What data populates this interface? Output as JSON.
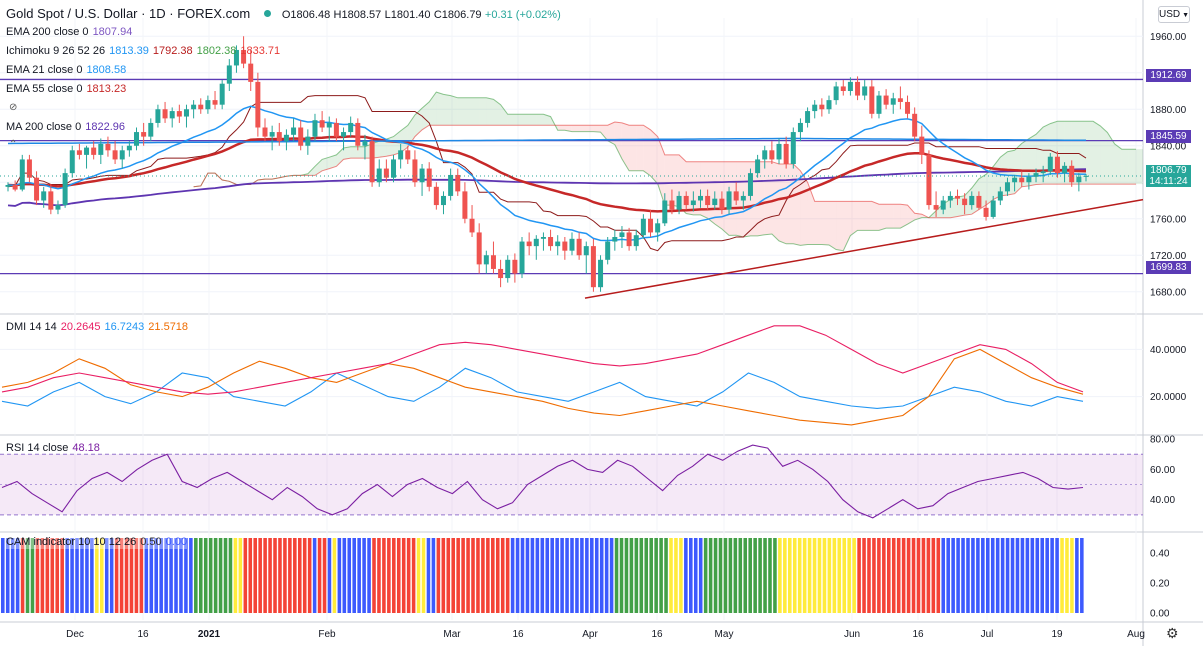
{
  "header": {
    "title": "Gold Spot / U.S. Dollar · 1D · FOREX.com",
    "open": "O1806.48",
    "high": "H1808.57",
    "low": "L1801.40",
    "close": "C1806.79",
    "change": "+0.31 (+0.02%)",
    "currency": "USD"
  },
  "legends": {
    "ema200": {
      "label": "EMA 200 close 0",
      "value": "1807.94"
    },
    "ichimoku": {
      "label": "Ichimoku 9 26 52 26",
      "v1": "1813.39",
      "v2": "1792.38",
      "v3": "1802.38",
      "v4": "1833.71"
    },
    "ema21": {
      "label": "EMA 21 close 0",
      "value": "1808.58"
    },
    "ema55": {
      "label": "EMA 55 close 0",
      "value": "1813.23"
    },
    "ma200": {
      "label": "MA 200 close 0",
      "value": "1822.96"
    },
    "dmi": {
      "label": "DMI 14 14",
      "v1": "20.2645",
      "v2": "16.7243",
      "v3": "21.5718"
    },
    "rsi": {
      "label": "RSI 14 close",
      "value": "48.18"
    },
    "cam": {
      "label": "CAM indicator 10 10 12 26",
      "v1": "0.50",
      "v2": "0.00"
    }
  },
  "price_labels": {
    "r1": "1912.69",
    "r2": "1845.59",
    "s1": "1699.83",
    "last_price": "1806.79",
    "last_time": "14:11:24"
  },
  "colors": {
    "up": "#26a69a",
    "down": "#ef5350",
    "hline": "#5b3bb5",
    "trend": "#b71c1c",
    "ema21": "#2196f3",
    "ema55": "#c62828",
    "ma200": "#5e35b1",
    "dmi_plus": "#2196f3",
    "dmi_minus": "#ef6c00",
    "adx": "#e91e63",
    "rsi": "#7b1fa2",
    "cam_red": "#f44336",
    "cam_blue": "#3d5afe",
    "cam_green": "#43a047",
    "cam_yellow": "#ffeb3b"
  },
  "chart_data": [
    {
      "type": "candlestick",
      "title": "Gold Spot / U.S. Dollar · 1D · FOREX.com",
      "ylim": [
        1660,
        1980
      ],
      "yticks": [
        "1960.00",
        "1920.00",
        "1880.00",
        "1840.00",
        "1800.00",
        "1760.00",
        "1720.00",
        "1680.00"
      ],
      "xticks": [
        "Dec",
        "16",
        "2021",
        "Feb",
        "Mar",
        "16",
        "Apr",
        "16",
        "May",
        "Jun",
        "16",
        "Jul",
        "19",
        "Aug"
      ],
      "t_range": [
        0,
        184
      ],
      "candles": [
        [
          1795,
          1800,
          1790,
          1797
        ],
        [
          1797,
          1802,
          1790,
          1792
        ],
        [
          1792,
          1830,
          1790,
          1825
        ],
        [
          1825,
          1830,
          1800,
          1805
        ],
        [
          1805,
          1812,
          1775,
          1780
        ],
        [
          1780,
          1795,
          1772,
          1790
        ],
        [
          1790,
          1798,
          1765,
          1770
        ],
        [
          1770,
          1780,
          1765,
          1775
        ],
        [
          1775,
          1815,
          1772,
          1810
        ],
        [
          1810,
          1840,
          1805,
          1835
        ],
        [
          1835,
          1842,
          1825,
          1830
        ],
        [
          1830,
          1840,
          1815,
          1838
        ],
        [
          1838,
          1845,
          1825,
          1830
        ],
        [
          1830,
          1848,
          1820,
          1842
        ],
        [
          1842,
          1850,
          1828,
          1835
        ],
        [
          1835,
          1845,
          1820,
          1825
        ],
        [
          1825,
          1840,
          1815,
          1835
        ],
        [
          1835,
          1845,
          1828,
          1840
        ],
        [
          1840,
          1860,
          1835,
          1855
        ],
        [
          1855,
          1865,
          1840,
          1850
        ],
        [
          1850,
          1870,
          1845,
          1865
        ],
        [
          1865,
          1885,
          1860,
          1880
        ],
        [
          1880,
          1888,
          1865,
          1870
        ],
        [
          1870,
          1882,
          1860,
          1878
        ],
        [
          1878,
          1885,
          1865,
          1872
        ],
        [
          1872,
          1885,
          1860,
          1880
        ],
        [
          1880,
          1890,
          1870,
          1885
        ],
        [
          1885,
          1892,
          1875,
          1880
        ],
        [
          1880,
          1895,
          1875,
          1890
        ],
        [
          1890,
          1900,
          1880,
          1885
        ],
        [
          1885,
          1912,
          1880,
          1908
        ],
        [
          1908,
          1935,
          1900,
          1928
        ],
        [
          1928,
          1950,
          1920,
          1945
        ],
        [
          1945,
          1960,
          1925,
          1930
        ],
        [
          1930,
          1945,
          1900,
          1910
        ],
        [
          1910,
          1920,
          1850,
          1860
        ],
        [
          1860,
          1870,
          1845,
          1850
        ],
        [
          1850,
          1862,
          1835,
          1855
        ],
        [
          1855,
          1865,
          1840,
          1845
        ],
        [
          1845,
          1858,
          1835,
          1852
        ],
        [
          1852,
          1870,
          1845,
          1860
        ],
        [
          1860,
          1868,
          1835,
          1840
        ],
        [
          1840,
          1858,
          1830,
          1850
        ],
        [
          1850,
          1875,
          1845,
          1868
        ],
        [
          1868,
          1878,
          1855,
          1860
        ],
        [
          1860,
          1872,
          1845,
          1865
        ],
        [
          1865,
          1870,
          1845,
          1850
        ],
        [
          1850,
          1860,
          1835,
          1855
        ],
        [
          1855,
          1872,
          1850,
          1865
        ],
        [
          1865,
          1870,
          1835,
          1840
        ],
        [
          1840,
          1852,
          1825,
          1845
        ],
        [
          1845,
          1850,
          1795,
          1800
        ],
        [
          1800,
          1825,
          1795,
          1815
        ],
        [
          1815,
          1825,
          1800,
          1805
        ],
        [
          1805,
          1830,
          1800,
          1825
        ],
        [
          1825,
          1842,
          1815,
          1835
        ],
        [
          1835,
          1840,
          1820,
          1825
        ],
        [
          1825,
          1835,
          1795,
          1800
        ],
        [
          1800,
          1820,
          1785,
          1815
        ],
        [
          1815,
          1822,
          1790,
          1795
        ],
        [
          1795,
          1800,
          1770,
          1775
        ],
        [
          1775,
          1790,
          1765,
          1785
        ],
        [
          1785,
          1815,
          1780,
          1808
        ],
        [
          1808,
          1815,
          1785,
          1790
        ],
        [
          1790,
          1800,
          1755,
          1760
        ],
        [
          1760,
          1775,
          1740,
          1745
        ],
        [
          1745,
          1755,
          1700,
          1710
        ],
        [
          1710,
          1725,
          1700,
          1720
        ],
        [
          1720,
          1735,
          1700,
          1705
        ],
        [
          1705,
          1715,
          1685,
          1695
        ],
        [
          1695,
          1720,
          1690,
          1715
        ],
        [
          1715,
          1722,
          1690,
          1700
        ],
        [
          1700,
          1740,
          1695,
          1735
        ],
        [
          1735,
          1745,
          1720,
          1730
        ],
        [
          1730,
          1742,
          1715,
          1738
        ],
        [
          1738,
          1745,
          1725,
          1740
        ],
        [
          1740,
          1748,
          1725,
          1730
        ],
        [
          1730,
          1742,
          1720,
          1735
        ],
        [
          1735,
          1740,
          1715,
          1725
        ],
        [
          1725,
          1745,
          1720,
          1738
        ],
        [
          1738,
          1745,
          1715,
          1720
        ],
        [
          1720,
          1735,
          1700,
          1730
        ],
        [
          1730,
          1738,
          1680,
          1685
        ],
        [
          1685,
          1720,
          1680,
          1715
        ],
        [
          1715,
          1740,
          1710,
          1735
        ],
        [
          1735,
          1748,
          1725,
          1740
        ],
        [
          1740,
          1752,
          1728,
          1745
        ],
        [
          1745,
          1750,
          1725,
          1730
        ],
        [
          1730,
          1748,
          1725,
          1742
        ],
        [
          1742,
          1765,
          1738,
          1760
        ],
        [
          1760,
          1770,
          1740,
          1745
        ],
        [
          1745,
          1760,
          1735,
          1755
        ],
        [
          1755,
          1788,
          1752,
          1780
        ],
        [
          1780,
          1792,
          1765,
          1770
        ],
        [
          1770,
          1790,
          1765,
          1785
        ],
        [
          1785,
          1790,
          1770,
          1775
        ],
        [
          1775,
          1790,
          1768,
          1780
        ],
        [
          1780,
          1792,
          1772,
          1785
        ],
        [
          1785,
          1792,
          1770,
          1775
        ],
        [
          1775,
          1790,
          1770,
          1782
        ],
        [
          1782,
          1790,
          1765,
          1770
        ],
        [
          1770,
          1795,
          1765,
          1790
        ],
        [
          1790,
          1800,
          1775,
          1780
        ],
        [
          1780,
          1790,
          1770,
          1785
        ],
        [
          1785,
          1815,
          1780,
          1810
        ],
        [
          1810,
          1830,
          1805,
          1825
        ],
        [
          1825,
          1840,
          1815,
          1835
        ],
        [
          1835,
          1845,
          1820,
          1825
        ],
        [
          1825,
          1848,
          1820,
          1842
        ],
        [
          1842,
          1850,
          1815,
          1820
        ],
        [
          1820,
          1860,
          1815,
          1855
        ],
        [
          1855,
          1870,
          1845,
          1865
        ],
        [
          1865,
          1882,
          1860,
          1878
        ],
        [
          1878,
          1890,
          1870,
          1885
        ],
        [
          1885,
          1892,
          1872,
          1880
        ],
        [
          1880,
          1895,
          1875,
          1890
        ],
        [
          1890,
          1910,
          1885,
          1905
        ],
        [
          1905,
          1912,
          1895,
          1900
        ],
        [
          1900,
          1915,
          1895,
          1910
        ],
        [
          1910,
          1916,
          1890,
          1895
        ],
        [
          1895,
          1912,
          1890,
          1905
        ],
        [
          1905,
          1912,
          1870,
          1875
        ],
        [
          1875,
          1900,
          1870,
          1895
        ],
        [
          1895,
          1902,
          1880,
          1885
        ],
        [
          1885,
          1898,
          1875,
          1892
        ],
        [
          1892,
          1905,
          1880,
          1888
        ],
        [
          1888,
          1895,
          1870,
          1875
        ],
        [
          1875,
          1882,
          1845,
          1850
        ],
        [
          1850,
          1862,
          1820,
          1830
        ],
        [
          1830,
          1835,
          1770,
          1775
        ],
        [
          1775,
          1790,
          1762,
          1770
        ],
        [
          1770,
          1785,
          1765,
          1780
        ],
        [
          1780,
          1790,
          1772,
          1785
        ],
        [
          1785,
          1792,
          1775,
          1782
        ],
        [
          1782,
          1788,
          1765,
          1775
        ],
        [
          1775,
          1790,
          1770,
          1785
        ],
        [
          1785,
          1790,
          1770,
          1772
        ],
        [
          1772,
          1780,
          1758,
          1762
        ],
        [
          1762,
          1785,
          1760,
          1780
        ],
        [
          1780,
          1795,
          1775,
          1790
        ],
        [
          1790,
          1805,
          1785,
          1800
        ],
        [
          1800,
          1808,
          1790,
          1805
        ],
        [
          1805,
          1812,
          1795,
          1800
        ],
        [
          1800,
          1810,
          1792,
          1806
        ],
        [
          1806,
          1815,
          1800,
          1810
        ],
        [
          1810,
          1818,
          1800,
          1812
        ],
        [
          1812,
          1832,
          1808,
          1828
        ],
        [
          1828,
          1834,
          1805,
          1810
        ],
        [
          1810,
          1822,
          1800,
          1818
        ],
        [
          1818,
          1824,
          1795,
          1800
        ],
        [
          1800,
          1810,
          1790,
          1806
        ],
        [
          1806,
          1809,
          1801,
          1807
        ]
      ]
    },
    {
      "type": "line",
      "title": "DMI 14 14",
      "ylim": [
        5,
        55
      ],
      "yticks": [
        "40.0000",
        "20.0000"
      ],
      "series": [
        {
          "name": "+DI",
          "color": "#2196f3",
          "values": [
            18,
            16,
            22,
            26,
            20,
            17,
            22,
            30,
            28,
            20,
            18,
            16,
            22,
            30,
            25,
            20,
            18,
            24,
            32,
            28,
            22,
            20,
            18,
            22,
            26,
            20,
            18,
            16,
            22,
            30,
            26,
            20,
            18,
            16,
            15,
            16,
            20,
            24,
            22,
            18,
            16,
            20,
            18
          ]
        },
        {
          "name": "-DI",
          "color": "#ef6c00",
          "values": [
            24,
            26,
            30,
            36,
            32,
            25,
            22,
            20,
            24,
            30,
            35,
            32,
            28,
            26,
            30,
            34,
            32,
            28,
            24,
            22,
            20,
            18,
            15,
            13,
            12,
            14,
            16,
            18,
            16,
            14,
            12,
            10,
            9,
            8,
            10,
            12,
            20,
            36,
            40,
            34,
            28,
            24,
            21
          ]
        },
        {
          "name": "ADX",
          "color": "#e91e63",
          "values": [
            22,
            24,
            28,
            30,
            28,
            26,
            24,
            22,
            21,
            22,
            24,
            26,
            28,
            30,
            32,
            34,
            38,
            42,
            43,
            42,
            40,
            38,
            36,
            34,
            33,
            34,
            36,
            38,
            42,
            46,
            50,
            50,
            46,
            40,
            34,
            30,
            34,
            38,
            42,
            40,
            34,
            26,
            22
          ]
        }
      ]
    },
    {
      "type": "line",
      "title": "RSI 14 close",
      "ylim": [
        20,
        82
      ],
      "yticks": [
        "80.00",
        "60.00",
        "40.00"
      ],
      "band": [
        30,
        70
      ],
      "series": [
        {
          "name": "RSI",
          "color": "#7b1fa2",
          "values": [
            48,
            52,
            44,
            38,
            32,
            46,
            54,
            58,
            52,
            60,
            66,
            70,
            52,
            48,
            54,
            58,
            52,
            46,
            40,
            48,
            42,
            34,
            30,
            34,
            44,
            50,
            42,
            50,
            54,
            48,
            44,
            52,
            40,
            34,
            38,
            50,
            56,
            62,
            66,
            60,
            58,
            66,
            62,
            54,
            46,
            56,
            62,
            70,
            66,
            72,
            76,
            74,
            62,
            66,
            60,
            52,
            40,
            32,
            28,
            34,
            40,
            34,
            36,
            44,
            48,
            52,
            54,
            56,
            58,
            54,
            48,
            47,
            48
          ]
        }
      ]
    },
    {
      "type": "bar",
      "title": "CAM indicator 10 10 12 26",
      "ylim": [
        0,
        0.5
      ],
      "yticks": [
        "0.40",
        "0.20",
        "0.00"
      ],
      "bars": "BBBBRGGRRRRRRBBBBBBYYBBRRRRRRBBBBBBBBBBGGGGGGGGYYRRRRRRRRRRRRRRBRRBYBBBBBBBRRRRRRRRRYYBBRRRRRRRRRRRRRRRBBBBBBBBBBBBBBBBBBBBBGGGGGGGGGGGYYYBBBBGGGGGGGGGGGGGGGYYYYYYYYYYYYYYYYRRRRRRRRRRRRRRRRRBBBBBBBBBBBBBBBBBBBBBBBBYYYBB"
    }
  ]
}
